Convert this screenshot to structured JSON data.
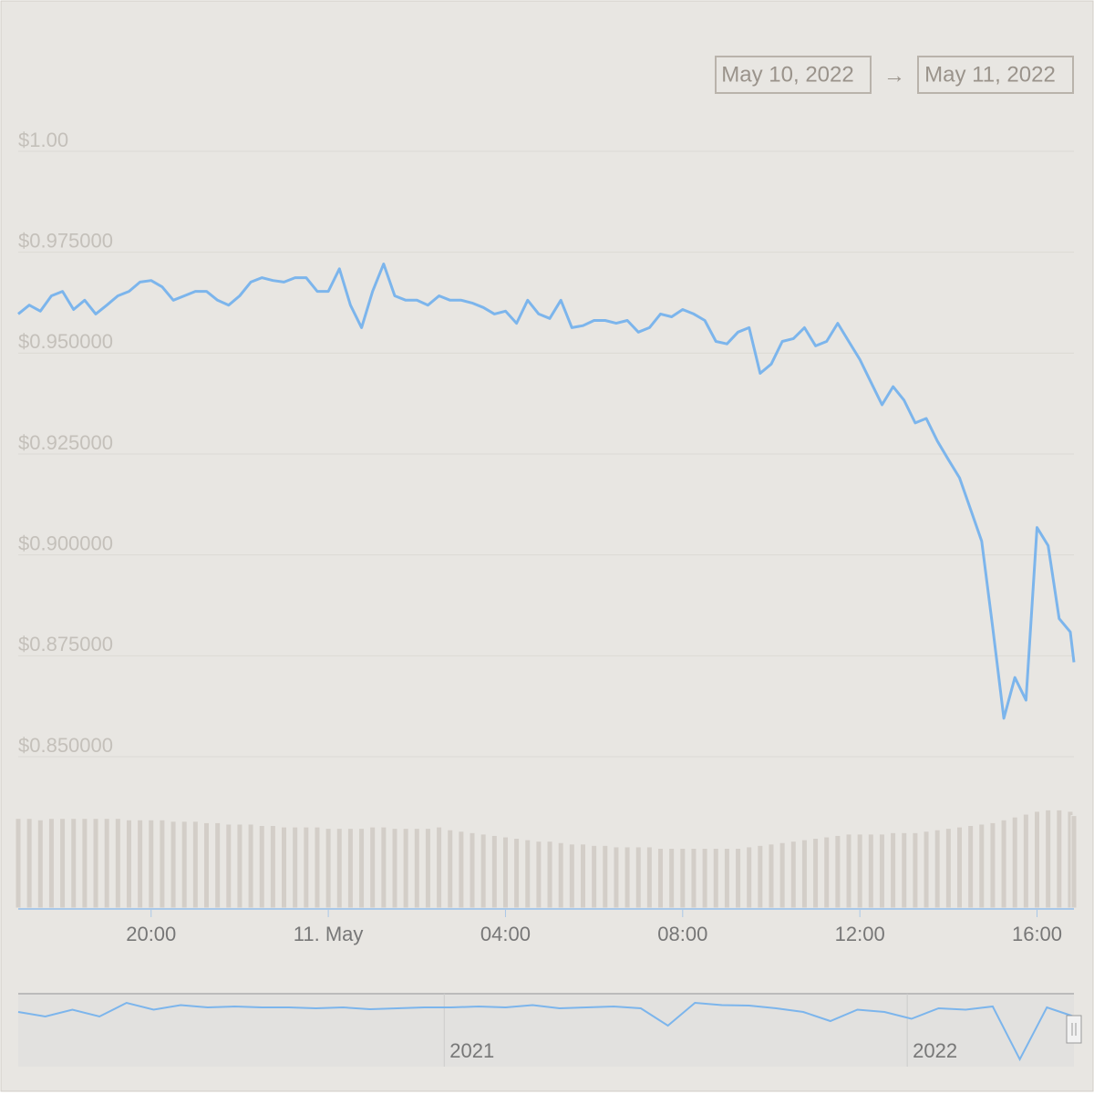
{
  "range": {
    "from": "May 10, 2022",
    "separator": "→",
    "to": "May 11, 2022"
  },
  "chart_data": {
    "type": "line",
    "x": [
      "2022-05-10T17:00",
      "2022-05-10T17:15",
      "2022-05-10T17:30",
      "2022-05-10T17:45",
      "2022-05-10T18:00",
      "2022-05-10T18:15",
      "2022-05-10T18:30",
      "2022-05-10T18:45",
      "2022-05-10T19:00",
      "2022-05-10T19:15",
      "2022-05-10T19:30",
      "2022-05-10T19:45",
      "2022-05-10T20:00",
      "2022-05-10T20:15",
      "2022-05-10T20:30",
      "2022-05-10T20:45",
      "2022-05-10T21:00",
      "2022-05-10T21:15",
      "2022-05-10T21:30",
      "2022-05-10T21:45",
      "2022-05-10T22:00",
      "2022-05-10T22:15",
      "2022-05-10T22:30",
      "2022-05-10T22:45",
      "2022-05-10T23:00",
      "2022-05-10T23:15",
      "2022-05-10T23:30",
      "2022-05-10T23:45",
      "2022-05-11T00:00",
      "2022-05-11T00:15",
      "2022-05-11T00:30",
      "2022-05-11T00:45",
      "2022-05-11T01:00",
      "2022-05-11T01:15",
      "2022-05-11T01:30",
      "2022-05-11T01:45",
      "2022-05-11T02:00",
      "2022-05-11T02:15",
      "2022-05-11T02:30",
      "2022-05-11T02:45",
      "2022-05-11T03:00",
      "2022-05-11T03:15",
      "2022-05-11T03:30",
      "2022-05-11T03:45",
      "2022-05-11T04:00",
      "2022-05-11T04:15",
      "2022-05-11T04:30",
      "2022-05-11T04:45",
      "2022-05-11T05:00",
      "2022-05-11T05:15",
      "2022-05-11T05:30",
      "2022-05-11T05:45",
      "2022-05-11T06:00",
      "2022-05-11T06:15",
      "2022-05-11T06:30",
      "2022-05-11T06:45",
      "2022-05-11T07:00",
      "2022-05-11T07:15",
      "2022-05-11T07:30",
      "2022-05-11T07:45",
      "2022-05-11T08:00",
      "2022-05-11T08:15",
      "2022-05-11T08:30",
      "2022-05-11T08:45",
      "2022-05-11T09:00",
      "2022-05-11T09:15",
      "2022-05-11T09:30",
      "2022-05-11T09:45",
      "2022-05-11T10:00",
      "2022-05-11T10:15",
      "2022-05-11T10:30",
      "2022-05-11T10:45",
      "2022-05-11T11:00",
      "2022-05-11T11:15",
      "2022-05-11T11:30",
      "2022-05-11T11:45",
      "2022-05-11T12:00",
      "2022-05-11T12:15",
      "2022-05-11T12:30",
      "2022-05-11T12:45",
      "2022-05-11T13:00",
      "2022-05-11T13:15",
      "2022-05-11T13:30",
      "2022-05-11T13:45",
      "2022-05-11T14:00",
      "2022-05-11T14:15",
      "2022-05-11T14:30",
      "2022-05-11T14:45",
      "2022-05-11T15:00",
      "2022-05-11T15:15",
      "2022-05-11T15:30",
      "2022-05-11T15:45",
      "2022-05-11T16:00",
      "2022-05-11T16:15",
      "2022-05-11T16:30",
      "2022-05-11T16:45",
      "2022-05-11T16:50"
    ],
    "series": [
      {
        "color": "#7cb5ec",
        "values": [
          0.9597,
          0.9619,
          0.9604,
          0.9642,
          0.9653,
          0.9608,
          0.9631,
          0.9597,
          0.9619,
          0.9642,
          0.9653,
          0.9676,
          0.968,
          0.9664,
          0.9631,
          0.9642,
          0.9653,
          0.9653,
          0.9631,
          0.9619,
          0.9642,
          0.9676,
          0.9687,
          0.968,
          0.9676,
          0.9687,
          0.9687,
          0.9653,
          0.9653,
          0.9709,
          0.9619,
          0.9563,
          0.9653,
          0.9721,
          0.9642,
          0.9631,
          0.9631,
          0.9619,
          0.9642,
          0.9631,
          0.9631,
          0.9624,
          0.9613,
          0.9597,
          0.9604,
          0.9574,
          0.9631,
          0.9597,
          0.9586,
          0.9631,
          0.9563,
          0.9568,
          0.9581,
          0.9581,
          0.9574,
          0.9581,
          0.9552,
          0.9563,
          0.9597,
          0.959,
          0.9608,
          0.9597,
          0.9581,
          0.9529,
          0.9523,
          0.9552,
          0.9563,
          0.945,
          0.9473,
          0.9529,
          0.9536,
          0.9563,
          0.9518,
          0.9529,
          0.9574,
          0.9529,
          0.9484,
          0.9428,
          0.9372,
          0.9417,
          0.9383,
          0.9327,
          0.9338,
          0.9282,
          0.9236,
          0.9191,
          0.9113,
          0.9034,
          0.882,
          0.8595,
          0.8696,
          0.864,
          0.9068,
          0.9023,
          0.8842,
          0.8809,
          0.8734
        ]
      }
    ],
    "volume": {
      "values": [
        63,
        63,
        62,
        63,
        63,
        63,
        63,
        63,
        63,
        63,
        62,
        62,
        62,
        62,
        61,
        61,
        61,
        60,
        60,
        59,
        59,
        59,
        58,
        58,
        57,
        57,
        57,
        57,
        56,
        56,
        56,
        56,
        57,
        57,
        56,
        56,
        56,
        56,
        57,
        55,
        54,
        53,
        52,
        51,
        50,
        49,
        48,
        47,
        47,
        46,
        45,
        45,
        44,
        44,
        43,
        43,
        43,
        43,
        42,
        42,
        42,
        42,
        42,
        42,
        42,
        42,
        43,
        44,
        45,
        46,
        47,
        48,
        49,
        50,
        51,
        52,
        52,
        52,
        52,
        53,
        53,
        53,
        54,
        55,
        56,
        57,
        58,
        59,
        60,
        62,
        64,
        66,
        68,
        69,
        69,
        68,
        65
      ]
    },
    "y2lim": [
      0,
      100
    ],
    "xlim": [
      "2022-05-10T17:00",
      "2022-05-11T16:50"
    ],
    "xticks": [
      {
        "value": "2022-05-10T20:00",
        "label": "20:00"
      },
      {
        "value": "2022-05-11T00:00",
        "label": "11. May"
      },
      {
        "value": "2022-05-11T04:00",
        "label": "04:00"
      },
      {
        "value": "2022-05-11T08:00",
        "label": "08:00"
      },
      {
        "value": "2022-05-11T12:00",
        "label": "12:00"
      },
      {
        "value": "2022-05-11T16:00",
        "label": "16:00"
      }
    ],
    "ylim": [
      0.85,
      1.0
    ],
    "yticks": [
      {
        "value": 0.85,
        "label": "$0.850000"
      },
      {
        "value": 0.875,
        "label": "$0.875000"
      },
      {
        "value": 0.9,
        "label": "$0.900000"
      },
      {
        "value": 0.925,
        "label": "$0.925000"
      },
      {
        "value": 0.95,
        "label": "$0.950000"
      },
      {
        "value": 0.975,
        "label": "$0.975000"
      },
      {
        "value": 1.0,
        "label": "$1.00"
      }
    ],
    "grid": true,
    "navigator": {
      "values": [
        0.97,
        0.96,
        0.975,
        0.96,
        0.99,
        0.975,
        0.985,
        0.98,
        0.982,
        0.98,
        0.98,
        0.978,
        0.98,
        0.976,
        0.978,
        0.98,
        0.98,
        0.982,
        0.98,
        0.985,
        0.978,
        0.98,
        0.982,
        0.978,
        0.94,
        0.99,
        0.985,
        0.984,
        0.978,
        0.97,
        0.95,
        0.975,
        0.97,
        0.955,
        0.978,
        0.975,
        0.982,
        0.866,
        0.98,
        0.96
      ],
      "xlim": [
        2020.08,
        2022.36
      ],
      "ylim": [
        0.85,
        1.01
      ],
      "xticks": [
        2021,
        2022
      ]
    }
  }
}
